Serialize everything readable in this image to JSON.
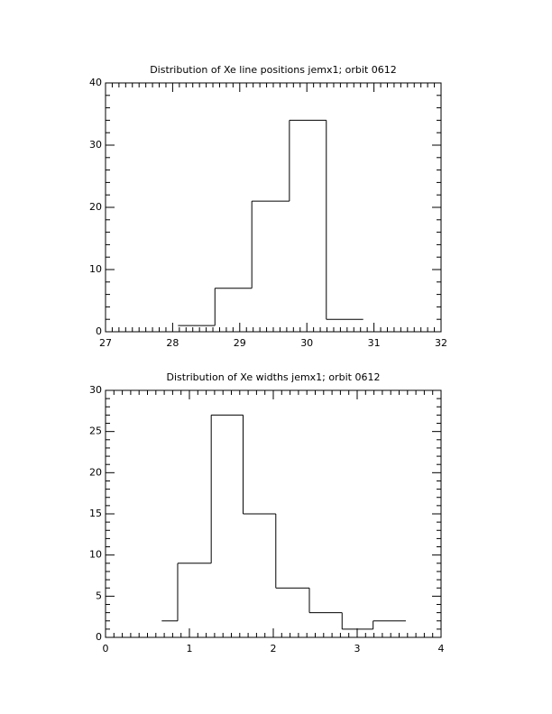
{
  "chart_data": [
    {
      "type": "histogram",
      "title": "Distribution of Xe line positions jemx1; orbit 0612",
      "bins": [
        28.08,
        28.63,
        29.18,
        29.74,
        30.29,
        30.84
      ],
      "values": [
        1,
        7,
        21,
        34,
        2
      ],
      "color": "#000000",
      "xlim": [
        27,
        32
      ],
      "xticks": [
        27,
        28,
        29,
        30,
        31,
        32
      ],
      "ylim": [
        0,
        40
      ],
      "yticks": [
        0,
        10,
        20,
        30,
        40
      ]
    },
    {
      "type": "histogram",
      "title": "Distribution of Xe widths jemx1; orbit 0612",
      "bins": [
        0.67,
        0.86,
        1.26,
        1.64,
        2.03,
        2.43,
        2.82,
        3.19,
        3.58
      ],
      "values": [
        2,
        9,
        27,
        15,
        6,
        3,
        1,
        2
      ],
      "color": "#000000",
      "xlim": [
        0,
        4
      ],
      "xticks": [
        0,
        1,
        2,
        3,
        4
      ],
      "ylim": [
        0,
        30
      ],
      "yticks": [
        0,
        5,
        10,
        15,
        20,
        25,
        30
      ]
    }
  ]
}
